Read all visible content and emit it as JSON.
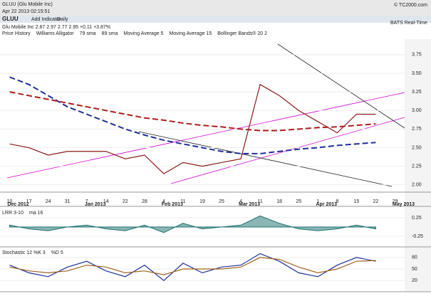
{
  "header": {
    "title": "GLUU (Glu Mobile Inc)",
    "timestamp": "Apr 22 2013 02:15:51",
    "brand": "© TC2000.com"
  },
  "toolbar": {
    "symbol": "GLUU",
    "add": "Add Indicator",
    "period": "Daily",
    "quote": "Glu Mobile Inc   2.87  2.97  2.77  2.95  +0.11  +3.87%",
    "feed": "BATS Real-Time"
  },
  "chart_data": [
    {
      "type": "line",
      "legend": [
        "Price History",
        "Williams Alligator",
        "79 sma",
        "89 sma",
        "Moving Average 5",
        "Moving Average 15",
        "Bollinger Bands® 20 2"
      ],
      "categories": [
        "10",
        "17",
        "24",
        "31",
        "7",
        "14",
        "22",
        "28",
        "4",
        "11",
        "19",
        "25",
        "4",
        "11",
        "18",
        "25",
        "1",
        "8",
        "15",
        "22",
        "29"
      ],
      "months": [
        "Dec 2012",
        "Jan 2013",
        "Feb 2013",
        "Mar 2013",
        "Apr 2013",
        "May 2013"
      ],
      "ylim": [
        1.95,
        3.95
      ],
      "yticks": [
        {
          "value": 2,
          "label": "2.00"
        },
        {
          "value": 2.25,
          "label": "2.25"
        },
        {
          "value": 2.5,
          "label": "2.50"
        },
        {
          "value": 2.75,
          "label": "2.75"
        },
        {
          "value": 3,
          "label": "3.00"
        },
        {
          "value": 3.25,
          "label": "3.25"
        },
        {
          "value": 3.5,
          "label": "3.50"
        },
        {
          "value": 3.75,
          "label": "3.75"
        }
      ],
      "series": [
        {
          "name": "Price History",
          "color": "#8b1a1a",
          "style": "solid",
          "values": [
            2.55,
            2.5,
            2.4,
            2.45,
            2.45,
            2.45,
            2.35,
            2.4,
            2.15,
            2.3,
            2.25,
            2.3,
            2.35,
            3.35,
            3.2,
            3.0,
            2.85,
            2.7,
            2.95,
            2.95,
            null
          ]
        },
        {
          "name": "79 sma",
          "color": "#1f2f9a",
          "style": "dashed",
          "values": [
            3.45,
            3.35,
            3.2,
            3.05,
            2.95,
            2.85,
            2.75,
            2.67,
            2.6,
            2.55,
            2.5,
            2.45,
            2.42,
            2.42,
            2.45,
            2.48,
            2.5,
            2.53,
            2.55,
            2.57,
            null
          ]
        },
        {
          "name": "89 sma",
          "color": "#b01c1c",
          "style": "dashed",
          "values": [
            3.25,
            3.2,
            3.15,
            3.1,
            3.05,
            3.0,
            2.95,
            2.9,
            2.87,
            2.83,
            2.8,
            2.78,
            2.75,
            2.73,
            2.73,
            2.75,
            2.77,
            2.78,
            2.8,
            2.82,
            null
          ]
        }
      ]
    },
    {
      "type": "line",
      "legend": [
        "LRR 3-10",
        "ma 16"
      ],
      "ylim": [
        -0.5,
        0.5
      ],
      "yticks": [
        {
          "value": 0.25,
          "label": "0.25"
        },
        {
          "value": -0.25,
          "label": "-0.25"
        }
      ],
      "series": [
        {
          "name": "LRR 3-10",
          "color": "#1a6e6e",
          "style": "area",
          "values": [
            0.05,
            -0.05,
            -0.1,
            0.0,
            0.05,
            -0.05,
            -0.1,
            0.05,
            -0.15,
            0.1,
            -0.05,
            0.0,
            0.05,
            0.3,
            0.1,
            -0.05,
            -0.1,
            -0.05,
            0.05,
            -0.05,
            null
          ]
        }
      ]
    },
    {
      "type": "line",
      "legend": [
        "Stochastic 12 %K 3",
        "%D 5"
      ],
      "ylim": [
        0,
        100
      ],
      "yticks": [
        20,
        50,
        80
      ],
      "series": [
        {
          "name": "%K",
          "color": "#1f2f9a",
          "style": "solid",
          "values": [
            60,
            40,
            30,
            55,
            70,
            45,
            30,
            60,
            20,
            65,
            40,
            55,
            60,
            90,
            70,
            40,
            30,
            60,
            80,
            70,
            null
          ]
        },
        {
          "name": "%D",
          "color": "#a0641e",
          "style": "solid",
          "values": [
            55,
            45,
            40,
            45,
            60,
            55,
            40,
            45,
            35,
            50,
            50,
            50,
            55,
            80,
            75,
            55,
            40,
            50,
            70,
            72,
            null
          ]
        }
      ]
    }
  ]
}
